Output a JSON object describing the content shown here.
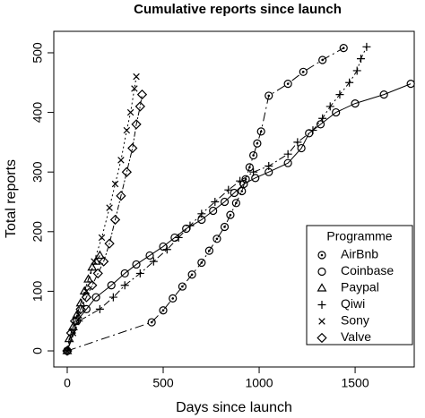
{
  "chart_data": {
    "type": "line",
    "title": "Cumulative reports since launch",
    "x_label": "Days since launch",
    "y_label": "Total reports",
    "legend_title": "Programme",
    "legend_position": "lower right",
    "xlim": [
      -70,
      1808
    ],
    "ylim": [
      -27,
      536
    ],
    "xticks": [
      0,
      500,
      1000,
      1500
    ],
    "yticks": [
      0,
      100,
      200,
      300,
      400,
      500
    ],
    "series": [
      {
        "name": "AirBnb",
        "color": "#000000",
        "marker": "circle-dot",
        "dash": "10 4 2 4",
        "x": [
          0,
          440,
          500,
          550,
          600,
          650,
          700,
          740,
          780,
          820,
          850,
          880,
          910,
          930,
          950,
          970,
          990,
          1010,
          1050,
          1150,
          1230,
          1330,
          1440
        ],
        "values": [
          0,
          48,
          68,
          88,
          108,
          128,
          148,
          168,
          188,
          208,
          228,
          248,
          268,
          288,
          308,
          328,
          348,
          368,
          428,
          448,
          468,
          488,
          508
        ]
      },
      {
        "name": "Coinbase",
        "color": "#000000",
        "marker": "circle",
        "dash": "none",
        "x": [
          0,
          50,
          100,
          150,
          230,
          300,
          360,
          430,
          500,
          560,
          620,
          700,
          760,
          820,
          870,
          920,
          980,
          1050,
          1150,
          1220,
          1260,
          1320,
          1400,
          1500,
          1650,
          1790
        ],
        "values": [
          0,
          50,
          70,
          90,
          110,
          130,
          145,
          160,
          175,
          190,
          205,
          220,
          235,
          250,
          265,
          280,
          290,
          300,
          315,
          340,
          365,
          380,
          400,
          415,
          430,
          448
        ]
      },
      {
        "name": "Paypal",
        "color": "#000000",
        "marker": "triangle",
        "dash": "6 3",
        "x": [
          0,
          10,
          30,
          50,
          70,
          90,
          110,
          130,
          150,
          170
        ],
        "values": [
          0,
          20,
          40,
          60,
          80,
          100,
          120,
          140,
          150,
          160
        ]
      },
      {
        "name": "Qiwi",
        "color": "#000000",
        "marker": "plus",
        "dash": "2 3 8 3",
        "x": [
          0,
          60,
          170,
          240,
          300,
          380,
          450,
          520,
          580,
          640,
          700,
          770,
          840,
          900,
          970,
          1050,
          1150,
          1200,
          1280,
          1330,
          1370,
          1420,
          1470,
          1510,
          1530,
          1560
        ],
        "values": [
          0,
          50,
          70,
          90,
          110,
          130,
          150,
          170,
          190,
          210,
          230,
          250,
          270,
          285,
          300,
          310,
          330,
          350,
          370,
          390,
          410,
          430,
          450,
          470,
          490,
          510
        ]
      },
      {
        "name": "Sony",
        "color": "#000000",
        "marker": "cross",
        "dash": "2 3",
        "x": [
          0,
          30,
          60,
          100,
          140,
          180,
          220,
          250,
          280,
          310,
          330,
          350,
          360
        ],
        "values": [
          0,
          30,
          60,
          100,
          150,
          190,
          240,
          280,
          320,
          370,
          400,
          440,
          460
        ]
      },
      {
        "name": "Valve",
        "color": "#000000",
        "marker": "diamond",
        "dash": "6 2 2 2",
        "x": [
          0,
          20,
          40,
          70,
          100,
          130,
          160,
          190,
          220,
          250,
          280,
          310,
          340,
          360,
          380,
          390
        ],
        "values": [
          0,
          30,
          50,
          70,
          90,
          110,
          130,
          150,
          180,
          220,
          260,
          300,
          340,
          380,
          410,
          430
        ]
      }
    ]
  }
}
